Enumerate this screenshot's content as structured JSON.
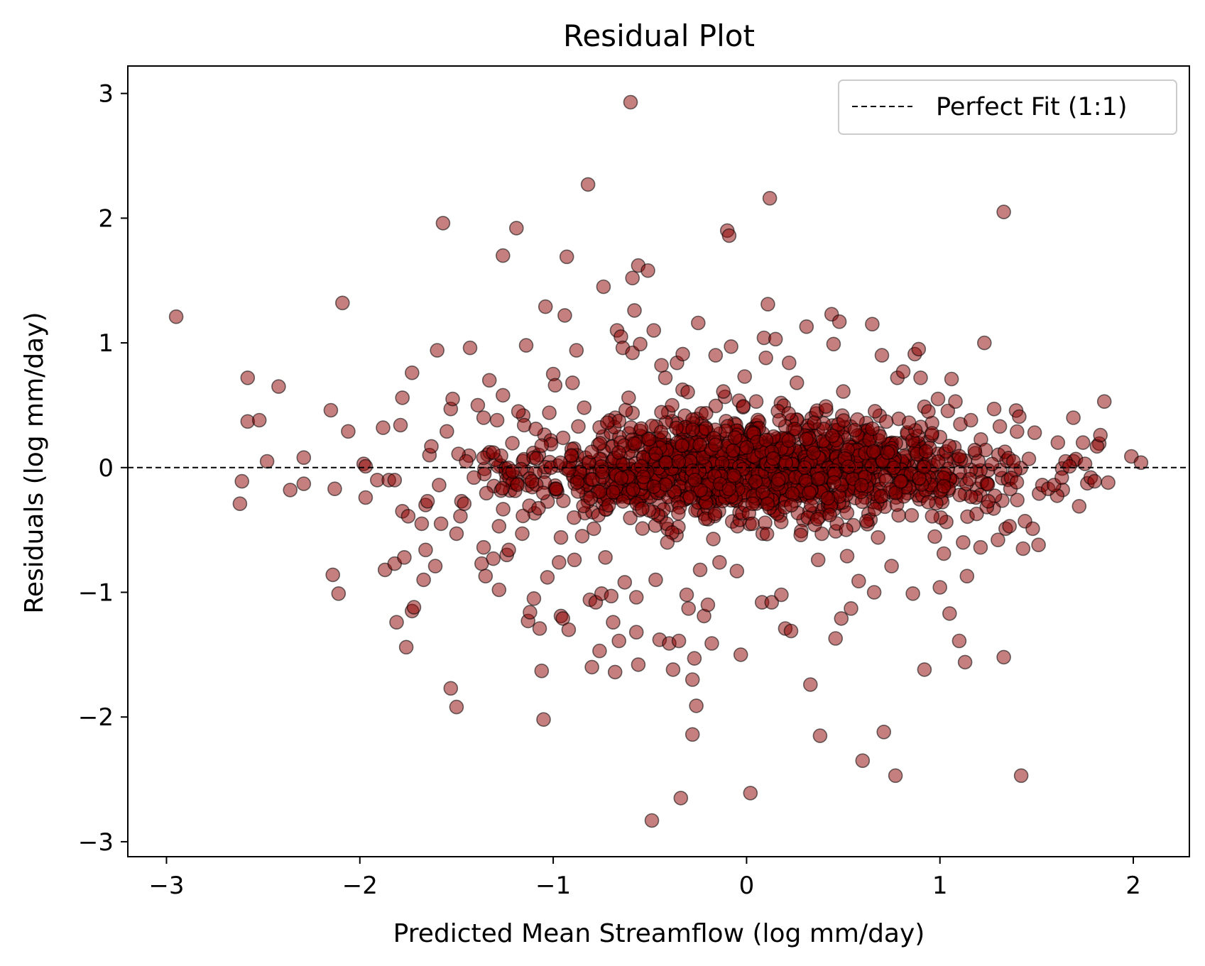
{
  "chart_data": {
    "type": "scatter",
    "title": "Residual Plot",
    "xlabel": "Predicted Mean Streamflow (log mm/day)",
    "ylabel": "Residuals (log mm/day)",
    "xlim": [
      -3.2,
      2.29
    ],
    "ylim": [
      -3.12,
      3.22
    ],
    "x_ticks": [
      -3,
      -2,
      -1,
      0,
      1,
      2
    ],
    "y_ticks": [
      -3,
      -2,
      -1,
      0,
      1,
      2,
      3
    ],
    "x_tick_labels": [
      "−3",
      "−2",
      "−1",
      "0",
      "1",
      "2"
    ],
    "y_tick_labels": [
      "−3",
      "−2",
      "−1",
      "0",
      "1",
      "2",
      "3"
    ],
    "grid": false,
    "reference_line": {
      "y": 0,
      "style": "dashed",
      "color": "#000000"
    },
    "legend": {
      "position": "top-right",
      "entries": [
        "Perfect Fit (1:1)"
      ]
    },
    "marker_color": "#8b0000",
    "marker_opacity": 0.5,
    "marker_edge_color": "#000000",
    "points": [
      [
        -2.95,
        1.21
      ],
      [
        -2.62,
        -0.29
      ],
      [
        -2.61,
        -0.11
      ],
      [
        -2.58,
        0.72
      ],
      [
        -2.58,
        0.37
      ],
      [
        -2.52,
        0.38
      ],
      [
        -2.48,
        0.05
      ],
      [
        -2.42,
        0.65
      ],
      [
        -2.36,
        -0.18
      ],
      [
        -2.29,
        0.08
      ],
      [
        -2.29,
        -0.13
      ],
      [
        -2.15,
        0.46
      ],
      [
        -2.14,
        -0.86
      ],
      [
        -2.13,
        -0.17
      ],
      [
        -2.11,
        -1.01
      ],
      [
        -2.09,
        1.32
      ],
      [
        -2.06,
        0.29
      ],
      [
        -1.98,
        0.03
      ],
      [
        -1.97,
        -0.24
      ],
      [
        -1.97,
        0.01
      ],
      [
        -1.91,
        -0.1
      ],
      [
        -1.88,
        0.32
      ],
      [
        -1.87,
        -0.82
      ],
      [
        -1.85,
        -0.1
      ],
      [
        -1.82,
        -0.77
      ],
      [
        -1.82,
        -0.1
      ],
      [
        -1.81,
        -1.24
      ],
      [
        -1.79,
        0.34
      ],
      [
        -1.78,
        0.56
      ],
      [
        -1.78,
        -0.35
      ],
      [
        -1.77,
        -0.72
      ],
      [
        -1.76,
        -1.44
      ],
      [
        -1.75,
        -0.39
      ],
      [
        -1.73,
        0.76
      ],
      [
        -1.73,
        -1.15
      ],
      [
        -1.72,
        -1.12
      ],
      [
        -1.68,
        -0.45
      ],
      [
        -1.67,
        -0.9
      ],
      [
        -1.66,
        -0.66
      ],
      [
        -1.66,
        -0.3
      ],
      [
        -1.65,
        -0.27
      ],
      [
        -1.64,
        0.1
      ],
      [
        -1.63,
        0.17
      ],
      [
        -1.61,
        -0.79
      ],
      [
        -1.6,
        0.94
      ],
      [
        -1.59,
        -0.14
      ],
      [
        -1.58,
        -0.45
      ],
      [
        -1.57,
        1.96
      ],
      [
        -1.55,
        0.29
      ],
      [
        -1.53,
        -1.77
      ],
      [
        -1.53,
        0.47
      ],
      [
        -1.52,
        0.55
      ],
      [
        -1.5,
        -1.92
      ],
      [
        -1.5,
        -0.53
      ],
      [
        -1.49,
        0.11
      ],
      [
        -1.48,
        -0.39
      ],
      [
        -1.46,
        -0.29
      ],
      [
        -1.45,
        0.05
      ],
      [
        -1.43,
        0.96
      ],
      [
        -1.41,
        -0.08
      ],
      [
        -1.39,
        0.5
      ],
      [
        -1.37,
        -0.77
      ],
      [
        -1.36,
        -0.64
      ],
      [
        -1.36,
        0.4
      ],
      [
        -1.35,
        -0.87
      ],
      [
        -1.33,
        0.7
      ],
      [
        -1.31,
        0.12
      ],
      [
        -1.31,
        -0.73
      ],
      [
        -1.29,
        0.38
      ],
      [
        -1.28,
        -0.98
      ],
      [
        -1.28,
        -0.47
      ],
      [
        -1.26,
        1.7
      ],
      [
        -1.26,
        0.58
      ],
      [
        -1.24,
        -0.7
      ],
      [
        -1.23,
        -0.66
      ],
      [
        -1.21,
        -0.03
      ],
      [
        -1.19,
        1.92
      ],
      [
        -1.18,
        0.45
      ],
      [
        -1.16,
        -0.53
      ],
      [
        -1.15,
        0.34
      ],
      [
        -1.14,
        0.98
      ],
      [
        -1.13,
        -1.23
      ],
      [
        -1.12,
        -1.16
      ],
      [
        -1.11,
        -0.11
      ],
      [
        -1.1,
        -1.05
      ],
      [
        -1.09,
        0.31
      ],
      [
        -1.07,
        -1.29
      ],
      [
        -1.06,
        -1.63
      ],
      [
        -1.05,
        -2.02
      ],
      [
        -1.04,
        1.29
      ],
      [
        -1.03,
        -0.88
      ],
      [
        -1.02,
        0.44
      ],
      [
        -1.0,
        0.75
      ],
      [
        -0.99,
        0.66
      ],
      [
        -0.97,
        -0.76
      ],
      [
        -0.96,
        -0.56
      ],
      [
        -0.96,
        -1.19
      ],
      [
        -0.95,
        -1.21
      ],
      [
        -0.94,
        1.22
      ],
      [
        -0.93,
        1.69
      ],
      [
        -0.92,
        -1.3
      ],
      [
        -0.9,
        0.68
      ],
      [
        -0.89,
        -0.74
      ],
      [
        -0.88,
        0.94
      ],
      [
        -0.87,
        0.33
      ],
      [
        -0.85,
        -0.55
      ],
      [
        -0.84,
        0.48
      ],
      [
        -0.82,
        2.27
      ],
      [
        -0.81,
        -1.06
      ],
      [
        -0.8,
        -1.6
      ],
      [
        -0.79,
        -0.49
      ],
      [
        -0.78,
        -1.08
      ],
      [
        -0.76,
        -1.47
      ],
      [
        -0.75,
        -1.01
      ],
      [
        -0.74,
        1.45
      ],
      [
        -0.73,
        -0.72
      ],
      [
        -0.72,
        0.36
      ],
      [
        -0.7,
        -1.03
      ],
      [
        -0.69,
        -1.24
      ],
      [
        -0.68,
        -1.64
      ],
      [
        -0.67,
        1.1
      ],
      [
        -0.66,
        -1.39
      ],
      [
        -0.65,
        1.05
      ],
      [
        -0.64,
        0.96
      ],
      [
        -0.63,
        -0.92
      ],
      [
        -0.61,
        0.56
      ],
      [
        -0.6,
        2.93
      ],
      [
        -0.59,
        0.92
      ],
      [
        -0.59,
        1.52
      ],
      [
        -0.58,
        1.26
      ],
      [
        -0.57,
        -1.04
      ],
      [
        -0.57,
        -1.32
      ],
      [
        -0.56,
        -1.58
      ],
      [
        -0.56,
        1.62
      ],
      [
        -0.55,
        0.99
      ],
      [
        -0.54,
        -0.33
      ],
      [
        -0.51,
        1.58
      ],
      [
        -0.49,
        -2.83
      ],
      [
        -0.48,
        1.1
      ],
      [
        -0.47,
        -0.9
      ],
      [
        -0.45,
        -1.38
      ],
      [
        -0.44,
        0.82
      ],
      [
        -0.42,
        0.72
      ],
      [
        -0.41,
        -0.6
      ],
      [
        -0.4,
        -1.41
      ],
      [
        -0.38,
        -1.62
      ],
      [
        -0.36,
        0.84
      ],
      [
        -0.35,
        -1.39
      ],
      [
        -0.34,
        -2.65
      ],
      [
        -0.33,
        0.91
      ],
      [
        -0.31,
        -1.02
      ],
      [
        -0.3,
        -1.13
      ],
      [
        -0.28,
        -2.14
      ],
      [
        -0.28,
        -1.7
      ],
      [
        -0.27,
        -1.53
      ],
      [
        -0.26,
        -1.91
      ],
      [
        -0.25,
        1.16
      ],
      [
        -0.24,
        -0.82
      ],
      [
        -0.22,
        -1.19
      ],
      [
        -0.2,
        -1.1
      ],
      [
        -0.18,
        -1.41
      ],
      [
        -0.16,
        0.9
      ],
      [
        -0.14,
        -0.76
      ],
      [
        -0.12,
        0.61
      ],
      [
        -0.1,
        1.9
      ],
      [
        -0.09,
        1.86
      ],
      [
        -0.08,
        0.97
      ],
      [
        -0.06,
        0.24
      ],
      [
        -0.05,
        -0.83
      ],
      [
        -0.03,
        -1.5
      ],
      [
        -0.01,
        0.73
      ],
      [
        0.02,
        -2.61
      ],
      [
        0.03,
        -0.45
      ],
      [
        0.05,
        0.53
      ],
      [
        0.08,
        -1.08
      ],
      [
        0.09,
        1.04
      ],
      [
        0.1,
        0.88
      ],
      [
        0.11,
        1.31
      ],
      [
        0.12,
        2.16
      ],
      [
        0.13,
        -1.08
      ],
      [
        0.15,
        1.03
      ],
      [
        0.17,
        0.38
      ],
      [
        0.18,
        -1.02
      ],
      [
        0.2,
        -1.29
      ],
      [
        0.22,
        0.84
      ],
      [
        0.23,
        -1.31
      ],
      [
        0.26,
        0.68
      ],
      [
        0.28,
        -0.54
      ],
      [
        0.31,
        1.13
      ],
      [
        0.33,
        -1.74
      ],
      [
        0.35,
        0.36
      ],
      [
        0.37,
        -0.74
      ],
      [
        0.38,
        -2.15
      ],
      [
        0.41,
        0.49
      ],
      [
        0.43,
        -0.38
      ],
      [
        0.44,
        1.23
      ],
      [
        0.45,
        0.99
      ],
      [
        0.46,
        -1.37
      ],
      [
        0.48,
        1.17
      ],
      [
        0.49,
        -1.21
      ],
      [
        0.5,
        0.61
      ],
      [
        0.52,
        -0.71
      ],
      [
        0.54,
        -1.13
      ],
      [
        0.56,
        0.3
      ],
      [
        0.58,
        -0.91
      ],
      [
        0.6,
        -2.35
      ],
      [
        0.62,
        -0.43
      ],
      [
        0.65,
        1.15
      ],
      [
        0.66,
        -1.0
      ],
      [
        0.68,
        -0.56
      ],
      [
        0.7,
        0.9
      ],
      [
        0.71,
        -2.12
      ],
      [
        0.73,
        0.12
      ],
      [
        0.75,
        -0.79
      ],
      [
        0.77,
        -2.47
      ],
      [
        0.78,
        0.72
      ],
      [
        0.81,
        0.77
      ],
      [
        0.84,
        0.36
      ],
      [
        0.86,
        -1.01
      ],
      [
        0.87,
        0.91
      ],
      [
        0.89,
        0.95
      ],
      [
        0.9,
        0.72
      ],
      [
        0.92,
        -1.62
      ],
      [
        0.94,
        0.45
      ],
      [
        0.96,
        -0.39
      ],
      [
        0.99,
        0.55
      ],
      [
        1.0,
        -0.96
      ],
      [
        1.02,
        -0.69
      ],
      [
        1.05,
        -1.17
      ],
      [
        1.06,
        0.71
      ],
      [
        1.08,
        0.53
      ],
      [
        1.1,
        -1.39
      ],
      [
        1.12,
        -0.6
      ],
      [
        1.13,
        -1.56
      ],
      [
        1.14,
        -0.87
      ],
      [
        1.16,
        0.38
      ],
      [
        1.18,
        0.14
      ],
      [
        1.21,
        -0.64
      ],
      [
        1.23,
        1.0
      ],
      [
        1.25,
        -0.27
      ],
      [
        1.28,
        0.47
      ],
      [
        1.3,
        -0.58
      ],
      [
        1.31,
        0.33
      ],
      [
        1.33,
        2.05
      ],
      [
        1.33,
        -1.52
      ],
      [
        1.34,
        -0.49
      ],
      [
        1.36,
        -0.47
      ],
      [
        1.38,
        0.05
      ],
      [
        1.4,
        -0.26
      ],
      [
        1.42,
        -2.47
      ],
      [
        1.43,
        -0.65
      ],
      [
        1.44,
        -0.43
      ],
      [
        1.46,
        0.07
      ],
      [
        1.48,
        -0.49
      ],
      [
        1.49,
        0.28
      ],
      [
        1.51,
        -0.62
      ],
      [
        1.53,
        -0.14
      ],
      [
        1.56,
        -0.17
      ],
      [
        1.59,
        -0.14
      ],
      [
        1.61,
        0.2
      ],
      [
        1.63,
        -0.08
      ],
      [
        1.65,
        0.05
      ],
      [
        1.67,
        0.01
      ],
      [
        1.69,
        0.4
      ],
      [
        1.72,
        -0.31
      ],
      [
        1.74,
        0.2
      ],
      [
        1.75,
        0.03
      ],
      [
        1.78,
        -0.08
      ],
      [
        1.8,
        -0.11
      ],
      [
        1.83,
        0.26
      ],
      [
        1.85,
        0.53
      ],
      [
        1.87,
        -0.12
      ],
      [
        1.99,
        0.09
      ],
      [
        2.04,
        0.04
      ]
    ],
    "cluster_seed": 12345,
    "cluster_count": 1500
  },
  "legend_label": "Perfect Fit (1:1)",
  "title": "Residual Plot",
  "xlabel": "Predicted Mean Streamflow (log mm/day)",
  "ylabel": "Residuals (log mm/day)"
}
